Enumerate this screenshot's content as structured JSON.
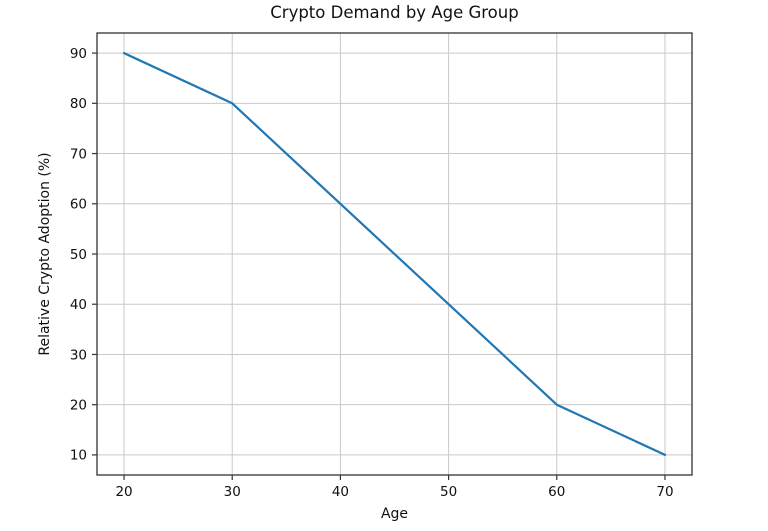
{
  "chart_data": {
    "type": "line",
    "title": "Crypto Demand by Age Group",
    "xlabel": "Age",
    "ylabel": "Relative Crypto Adoption (%)",
    "x": [
      20,
      30,
      40,
      50,
      60,
      70
    ],
    "y": [
      90,
      80,
      60,
      40,
      20,
      10
    ],
    "series": [
      {
        "name": "Relative Crypto Adoption",
        "x": [
          20,
          30,
          40,
          50,
          60,
          70
        ],
        "values": [
          90,
          80,
          60,
          40,
          20,
          10
        ]
      }
    ],
    "xticks": [
      20,
      30,
      40,
      50,
      60,
      70
    ],
    "yticks": [
      10,
      20,
      30,
      40,
      50,
      60,
      70,
      80,
      90
    ],
    "xlim": [
      17.5,
      72.5
    ],
    "ylim": [
      6,
      94
    ],
    "grid": true,
    "legend_position": "none",
    "colors": {
      "line": "#1f77b4",
      "grid": "#c9c9c9",
      "spine": "#333333",
      "text": "#111111",
      "background": "#ffffff"
    }
  }
}
